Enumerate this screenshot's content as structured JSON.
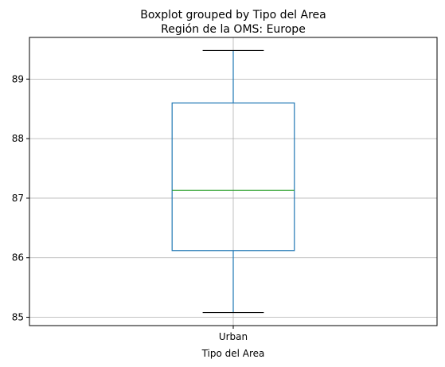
{
  "chart_data": {
    "type": "boxplot",
    "suptitle": "Boxplot grouped by Tipo del Area",
    "title": "Región de la OMS: Europe",
    "xlabel": "Tipo del Area",
    "ylabel": "",
    "categories": [
      "Urban"
    ],
    "boxes": [
      {
        "category": "Urban",
        "whisker_low": 85.08,
        "q1": 86.12,
        "median": 87.13,
        "q3": 88.6,
        "whisker_high": 89.48
      }
    ],
    "y_ticks": [
      85,
      86,
      87,
      88,
      89
    ],
    "ylim": [
      84.86,
      89.7
    ],
    "grid": true,
    "colors": {
      "box": "#1f77b4",
      "median": "#2ca02c",
      "grid": "#b0b0b0",
      "axis": "#000000"
    }
  }
}
